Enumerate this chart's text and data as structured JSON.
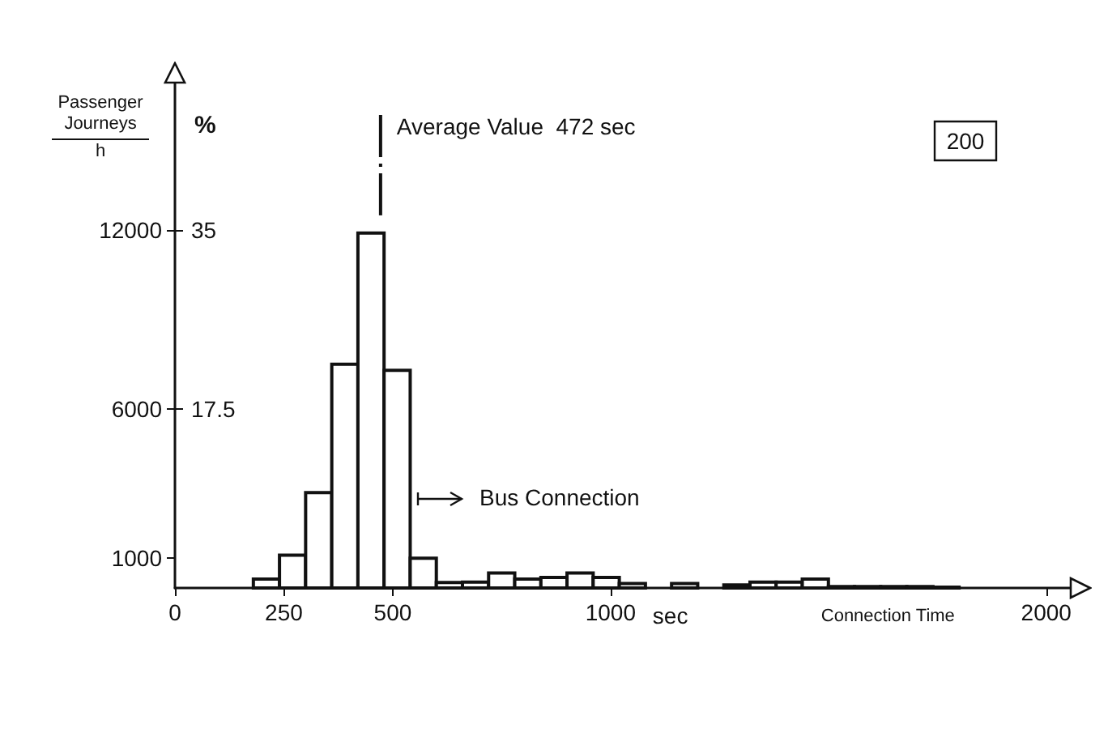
{
  "chart_data": {
    "type": "histogram",
    "bins": [
      180,
      240,
      300,
      360,
      420,
      480,
      540,
      600,
      660,
      720,
      780,
      840,
      900,
      960,
      1020,
      1080,
      1140,
      1200,
      1260,
      1320,
      1380,
      1440,
      1500,
      1560,
      1620,
      1680,
      1740,
      1800
    ],
    "values": [
      300,
      1100,
      3200,
      7500,
      11900,
      7300,
      1000,
      180,
      200,
      500,
      300,
      350,
      500,
      350,
      150,
      0,
      150,
      0,
      100,
      200,
      200,
      300,
      50,
      50,
      50,
      50,
      30
    ],
    "color": "#ffffff",
    "ylabel": "Passenger\nJourneys\nh",
    "y2label": "%",
    "xlabel": "Connection Time",
    "xlim": [
      0,
      2060
    ],
    "xticks": [
      0,
      250,
      500,
      1000,
      2000
    ],
    "ylim": [
      0,
      17000
    ],
    "yticks": [
      1000,
      6000,
      12000
    ],
    "y2lim": [
      0,
      49.6
    ],
    "y2ticks": [
      17.5,
      35
    ],
    "ref_lines": [
      {
        "axis": "x",
        "value": 472,
        "label": "Average Value  472 sec",
        "line_style": "dashed"
      }
    ],
    "annotations": [
      "sec",
      "Bus Connection",
      "200"
    ],
    "grid": false
  }
}
